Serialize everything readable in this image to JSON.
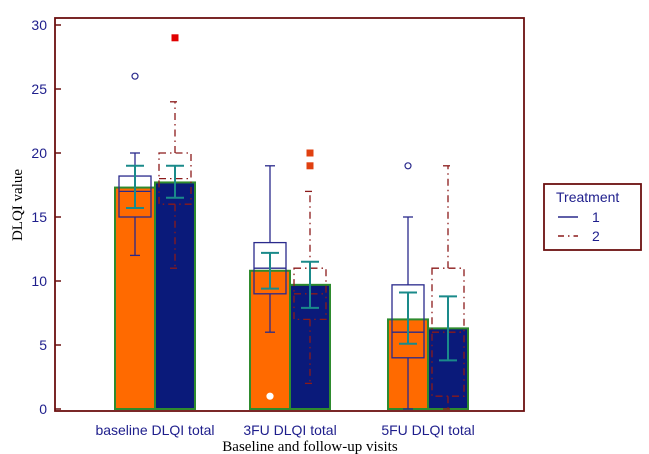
{
  "chart_data": {
    "type": "bar",
    "categories": [
      "baseline DLQI total",
      "3FU DLQI total",
      "5FU DLQI total"
    ],
    "xlabel": "Baseline and follow-up visits",
    "ylabel": "DLQI value",
    "ylim": [
      0,
      30
    ],
    "yticks": [
      0,
      5,
      10,
      15,
      20,
      25,
      30
    ],
    "grid": false,
    "legend": {
      "title": "Treatment",
      "position": "right",
      "entries": [
        {
          "label": "1",
          "line_style": "solid",
          "color": "#2a2a8c"
        },
        {
          "label": "2",
          "line_style": "dash-dot",
          "color": "#8b1a1a"
        }
      ]
    },
    "series": [
      {
        "treatment": "1",
        "bar_color": "#ff6a00",
        "box_line_color": "#2a2a8c",
        "values": [
          17.3,
          10.8,
          7.0
        ],
        "error_bars": [
          [
            15.7,
            19.0
          ],
          [
            9.4,
            12.2
          ],
          [
            5.1,
            9.1
          ]
        ],
        "boxplots": [
          {
            "min": 12,
            "q1": 15,
            "median": 17,
            "q3": 18.2,
            "max": 20,
            "outliers": [
              26
            ]
          },
          {
            "min": 6,
            "q1": 9,
            "median": 11,
            "q3": 13,
            "max": 19,
            "outliers": [
              1
            ]
          },
          {
            "min": 0,
            "q1": 4,
            "median": 6,
            "q3": 9.7,
            "max": 15,
            "outliers": [
              19
            ]
          }
        ]
      },
      {
        "treatment": "2",
        "bar_color": "#0a1a7a",
        "box_line_color": "#8b1a1a",
        "values": [
          17.7,
          9.7,
          6.3
        ],
        "error_bars": [
          [
            16.5,
            19.0
          ],
          [
            7.9,
            11.5
          ],
          [
            3.8,
            8.8
          ]
        ],
        "boxplots": [
          {
            "min": 11,
            "q1": 16,
            "median": 18,
            "q3": 20,
            "max": 24,
            "outliers": [
              29
            ]
          },
          {
            "min": 2,
            "q1": 7,
            "median": 9,
            "q3": 11,
            "max": 17,
            "outliers": [
              19,
              20
            ]
          },
          {
            "min": 0,
            "q1": 1,
            "median": 6,
            "q3": 11,
            "max": 19,
            "outliers": []
          }
        ]
      }
    ],
    "colors": {
      "frame": "#6b1010",
      "error_bar": "#1a8a8a",
      "bar_border": "#2e8b2e",
      "outlier_filled": "#e04010",
      "outlier_red": "#e00000"
    }
  }
}
